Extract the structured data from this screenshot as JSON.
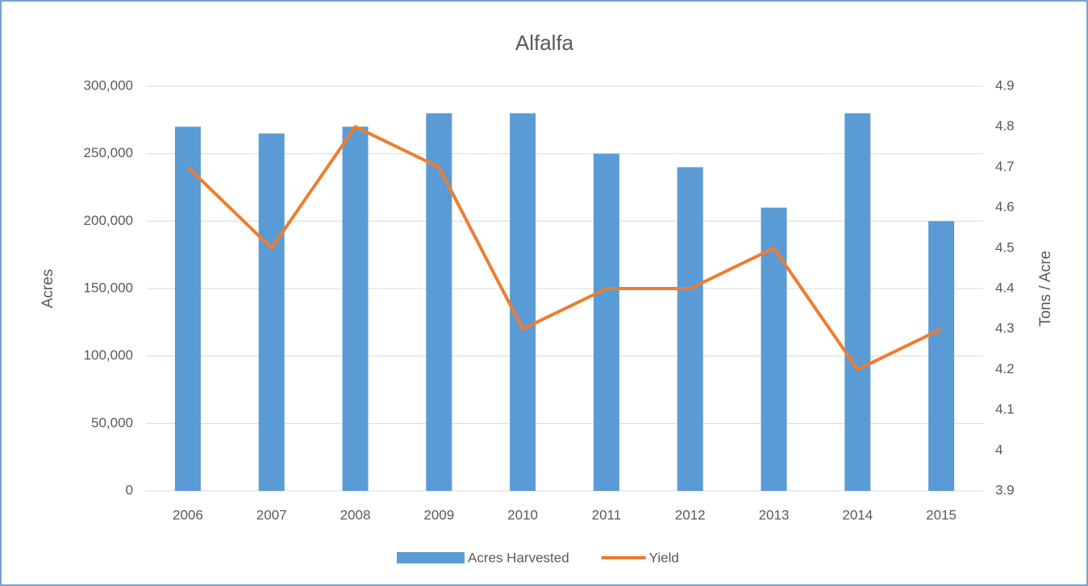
{
  "chart_data": {
    "type": "bar_line",
    "title": "Alfalfa",
    "y_label": "Acres",
    "y2_label": "Tons / Acre",
    "categories": [
      "2006",
      "2007",
      "2008",
      "2009",
      "2010",
      "2011",
      "2012",
      "2013",
      "2014",
      "2015"
    ],
    "series": [
      {
        "name": "Acres Harvested",
        "type": "bar",
        "color": "#5b9bd5",
        "values": [
          270000,
          265000,
          270000,
          280000,
          280000,
          250000,
          240000,
          210000,
          280000,
          200000
        ]
      },
      {
        "name": "Yield",
        "type": "line",
        "axis": "y2",
        "color": "#ed7d31",
        "values": [
          4.7,
          4.5,
          4.8,
          4.7,
          4.3,
          4.4,
          4.4,
          4.5,
          4.2,
          4.3
        ]
      }
    ],
    "ylim": [
      0,
      300000
    ],
    "yticks": [
      0,
      {
        "value": 50000,
        "label": "50,000"
      },
      {
        "value": 100000,
        "label": "100,000"
      },
      {
        "value": 150000,
        "label": "150,000"
      },
      {
        "value": 200000,
        "label": "200,000"
      },
      {
        "value": 250000,
        "label": "250,000"
      },
      {
        "value": 300000,
        "label": "300,000"
      }
    ],
    "y2lim": [
      3.9,
      4.9
    ],
    "y2ticks": [
      3.9,
      4,
      4.1,
      4.2,
      4.3,
      4.4,
      4.5,
      4.6,
      4.7,
      4.8,
      4.9
    ],
    "grid": true,
    "legend": "bottom"
  }
}
